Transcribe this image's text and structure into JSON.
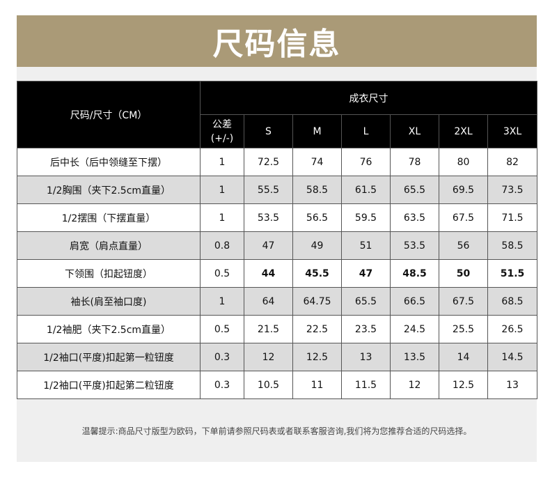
{
  "title": "尺码信息",
  "header": {
    "size_col": "尺码/尺寸（CM）",
    "group": "成衣尺寸",
    "tolerance": "公差\n(+/-)",
    "sizes": [
      "S",
      "M",
      "L",
      "XL",
      "2XL",
      "3XL"
    ]
  },
  "rows": [
    {
      "label": "后中长（后中领缝至下摆）",
      "tol": "1",
      "values": [
        "72.5",
        "74",
        "76",
        "78",
        "80",
        "82"
      ]
    },
    {
      "label": "1/2胸围（夹下2.5cm直量）",
      "tol": "1",
      "values": [
        "55.5",
        "58.5",
        "61.5",
        "65.5",
        "69.5",
        "73.5"
      ]
    },
    {
      "label": "1/2摆围（下摆直量）",
      "tol": "1",
      "values": [
        "53.5",
        "56.5",
        "59.5",
        "63.5",
        "67.5",
        "71.5"
      ]
    },
    {
      "label": "肩宽（肩点直量）",
      "tol": "0.8",
      "values": [
        "47",
        "49",
        "51",
        "53.5",
        "56",
        "58.5"
      ]
    },
    {
      "label": "下领围（扣起钮度）",
      "tol": "0.5",
      "values": [
        "44",
        "45.5",
        "47",
        "48.5",
        "50",
        "51.5"
      ]
    },
    {
      "label": "袖长(肩至袖口度)",
      "tol": "1",
      "values": [
        "64",
        "64.75",
        "65.5",
        "66.5",
        "67.5",
        "68.5"
      ]
    },
    {
      "label": "1/2袖肥（夹下2.5cm直量）",
      "tol": "0.5",
      "values": [
        "21.5",
        "22.5",
        "23.5",
        "24.5",
        "25.5",
        "26.5"
      ]
    },
    {
      "label": "1/2袖口(平度)扣起第一粒钮度",
      "tol": "0.3",
      "values": [
        "12",
        "12.5",
        "13",
        "13.5",
        "14",
        "14.5"
      ]
    },
    {
      "label": "1/2袖口(平度)扣起第二粒钮度",
      "tol": "0.3",
      "values": [
        "10.5",
        "11",
        "11.5",
        "12",
        "12.5",
        "13"
      ]
    }
  ],
  "footnote": "温馨提示:商品尺寸版型为欧码，下单前请参照尺码表或者联系客服咨询,我们将为您推荐合适的尺码选择。",
  "colors": {
    "title_band": "#aa9a77",
    "header_bg": "#000000",
    "shaded_row": "#dcdcdc"
  }
}
